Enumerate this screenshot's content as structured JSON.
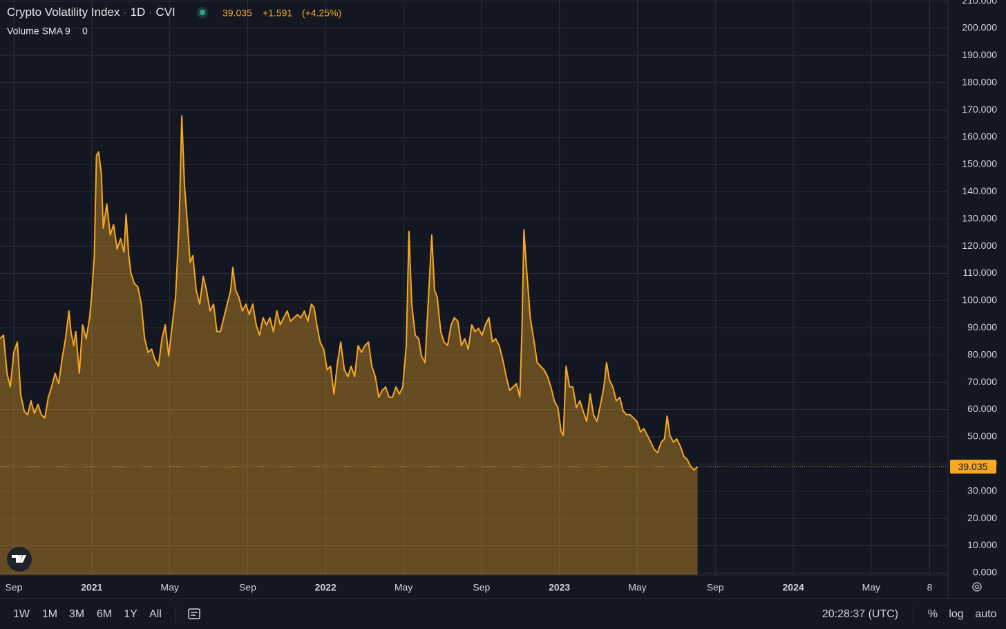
{
  "chart_data": {
    "type": "area",
    "title": "Crypto Volatility Index",
    "interval": "1D",
    "symbol": "CVI",
    "change": "+1.591",
    "change_percent": "(+4.25%)",
    "indicator": {
      "name": "Volume SMA 9",
      "value": 0
    },
    "color": "#f7a823",
    "fill": "rgba(247,168,35,0.36)",
    "grid": true,
    "xlim": [
      -0.71,
      47.94
    ],
    "ylim": [
      -0.8,
      210.4
    ],
    "xticks": [
      {
        "value": 0,
        "label": "Sep"
      },
      {
        "value": 4,
        "label": "2021"
      },
      {
        "value": 8,
        "label": "May"
      },
      {
        "value": 12,
        "label": "Sep"
      },
      {
        "value": 16,
        "label": "2022"
      },
      {
        "value": 20,
        "label": "May"
      },
      {
        "value": 24,
        "label": "Sep"
      },
      {
        "value": 28,
        "label": "2023"
      },
      {
        "value": 32,
        "label": "May"
      },
      {
        "value": 36,
        "label": "Sep"
      },
      {
        "value": 40,
        "label": "2024"
      },
      {
        "value": 44,
        "label": "May"
      },
      {
        "value": 47,
        "label": "8"
      }
    ],
    "yticks": [
      {
        "value": 0,
        "label": "0.000"
      },
      {
        "value": 10,
        "label": "10.000"
      },
      {
        "value": 20,
        "label": "20.000"
      },
      {
        "value": 30,
        "label": "30.000"
      },
      {
        "value": 40,
        "label": "40.000"
      },
      {
        "value": 50,
        "label": "50.000"
      },
      {
        "value": 60,
        "label": "60.000"
      },
      {
        "value": 70,
        "label": "70.000"
      },
      {
        "value": 80,
        "label": "80.000"
      },
      {
        "value": 90,
        "label": "90.000"
      },
      {
        "value": 100,
        "label": "100.000"
      },
      {
        "value": 110,
        "label": "110.000"
      },
      {
        "value": 120,
        "label": "120.000"
      },
      {
        "value": 130,
        "label": "130.000"
      },
      {
        "value": 140,
        "label": "140.000"
      },
      {
        "value": 150,
        "label": "150.000"
      },
      {
        "value": 160,
        "label": "160.000"
      },
      {
        "value": 170,
        "label": "170.000"
      },
      {
        "value": 180,
        "label": "180.000"
      },
      {
        "value": 190,
        "label": "190.000"
      },
      {
        "value": 200,
        "label": "200.000"
      },
      {
        "value": 210,
        "label": "210.000"
      }
    ],
    "x": [
      -0.71,
      -0.53,
      -0.35,
      -0.18,
      0,
      0.18,
      0.35,
      0.53,
      0.71,
      0.88,
      1.06,
      1.24,
      1.41,
      1.59,
      1.77,
      1.94,
      2.12,
      2.3,
      2.47,
      2.65,
      2.83,
      2.93,
      3.07,
      3.18,
      3.36,
      3.53,
      3.71,
      3.89,
      3.99,
      4.13,
      4.24,
      4.35,
      4.49,
      4.59,
      4.77,
      4.95,
      5.12,
      5.3,
      5.48,
      5.65,
      5.76,
      5.9,
      6.01,
      6.18,
      6.36,
      6.54,
      6.71,
      6.89,
      7.07,
      7.24,
      7.42,
      7.6,
      7.77,
      7.95,
      8.13,
      8.3,
      8.48,
      8.62,
      8.76,
      8.9,
      9.05,
      9.19,
      9.36,
      9.54,
      9.72,
      9.89,
      10.07,
      10.25,
      10.42,
      10.6,
      10.78,
      10.95,
      11.13,
      11.24,
      11.38,
      11.55,
      11.73,
      11.91,
      12.08,
      12.26,
      12.44,
      12.61,
      12.79,
      12.97,
      13.14,
      13.32,
      13.5,
      13.67,
      13.85,
      14.03,
      14.2,
      14.38,
      14.56,
      14.73,
      14.91,
      15.09,
      15.27,
      15.41,
      15.55,
      15.72,
      15.9,
      16.08,
      16.25,
      16.43,
      16.61,
      16.78,
      16.96,
      17.14,
      17.31,
      17.49,
      17.67,
      17.84,
      18.02,
      18.2,
      18.37,
      18.55,
      18.73,
      18.9,
      19.08,
      19.26,
      19.43,
      19.61,
      19.79,
      19.96,
      20.14,
      20.28,
      20.42,
      20.6,
      20.78,
      20.92,
      21.1,
      21.27,
      21.45,
      21.59,
      21.73,
      21.91,
      22.08,
      22.26,
      22.44,
      22.61,
      22.79,
      22.97,
      23.14,
      23.32,
      23.5,
      23.67,
      23.85,
      24.03,
      24.2,
      24.38,
      24.56,
      24.73,
      24.91,
      25.09,
      25.27,
      25.44,
      25.62,
      25.8,
      25.97,
      26.08,
      26.18,
      26.29,
      26.4,
      26.5,
      26.68,
      26.86,
      27.03,
      27.21,
      27.39,
      27.56,
      27.74,
      27.92,
      28.09,
      28.2,
      28.34,
      28.52,
      28.69,
      28.87,
      29.05,
      29.22,
      29.4,
      29.58,
      29.75,
      29.93,
      30.11,
      30.28,
      30.42,
      30.57,
      30.74,
      30.92,
      31.1,
      31.27,
      31.45,
      31.63,
      31.8,
      31.98,
      32.16,
      32.33,
      32.51,
      32.69,
      32.86,
      33.04,
      33.22,
      33.39,
      33.53,
      33.67,
      33.85,
      34.02,
      34.2,
      34.38,
      34.56,
      34.73,
      34.91,
      35.09
    ],
    "values": [
      86.0,
      87.3,
      73.3,
      68.3,
      81.0,
      84.8,
      65.7,
      59.4,
      58.1,
      63.2,
      58.6,
      61.9,
      58.1,
      56.9,
      64.5,
      68.3,
      73.3,
      69.5,
      78.4,
      86.0,
      96.2,
      88.6,
      83.5,
      88.6,
      73.3,
      91.1,
      86.0,
      93.7,
      101.3,
      116.5,
      153.3,
      154.6,
      146.9,
      126.6,
      135.5,
      124.1,
      127.9,
      119.0,
      122.8,
      117.8,
      131.7,
      116.5,
      110.1,
      106.3,
      105.1,
      98.7,
      86.0,
      81.0,
      82.2,
      78.4,
      75.9,
      86.0,
      91.1,
      79.7,
      91.1,
      101.3,
      127.9,
      167.8,
      141.9,
      129.2,
      114.0,
      116.5,
      103.8,
      98.7,
      108.9,
      103.8,
      96.2,
      98.7,
      88.6,
      88.6,
      93.7,
      98.7,
      103.8,
      112.2,
      103.8,
      101.3,
      96.2,
      98.7,
      94.9,
      98.7,
      91.1,
      87.3,
      93.7,
      91.1,
      93.7,
      88.6,
      96.2,
      91.1,
      93.7,
      96.2,
      92.4,
      93.7,
      94.9,
      93.7,
      96.2,
      92.4,
      98.7,
      97.5,
      91.1,
      84.8,
      82.2,
      74.6,
      75.9,
      65.7,
      77.2,
      84.8,
      74.6,
      72.1,
      75.9,
      72.1,
      83.5,
      81.0,
      83.5,
      84.8,
      75.9,
      72.1,
      64.5,
      67.0,
      68.3,
      64.5,
      64.5,
      68.3,
      65.7,
      68.3,
      83.5,
      125.4,
      98.7,
      87.3,
      86.0,
      79.7,
      77.2,
      100.0,
      124.1,
      103.8,
      101.3,
      88.6,
      84.8,
      83.5,
      91.1,
      93.7,
      92.4,
      83.5,
      86.0,
      82.2,
      91.1,
      88.6,
      89.8,
      87.3,
      91.1,
      93.7,
      84.8,
      86.0,
      83.5,
      78.4,
      72.1,
      67.0,
      68.3,
      69.5,
      64.5,
      89.8,
      126.1,
      114.0,
      103.8,
      93.7,
      86.0,
      77.2,
      75.9,
      74.6,
      72.1,
      68.3,
      63.2,
      60.7,
      51.8,
      50.5,
      75.9,
      68.3,
      68.3,
      60.7,
      63.2,
      59.4,
      55.6,
      65.7,
      58.1,
      55.6,
      61.9,
      68.3,
      77.2,
      70.8,
      68.3,
      63.2,
      64.5,
      59.4,
      58.1,
      58.1,
      56.9,
      55.6,
      51.8,
      53.0,
      50.5,
      48.0,
      45.4,
      44.2,
      48.0,
      49.2,
      57.6,
      50.5,
      48.0,
      49.2,
      46.7,
      42.9,
      41.6,
      39.1,
      37.8,
      39.035
    ]
  },
  "toolbar": {
    "ranges": [
      "1W",
      "1M",
      "3M",
      "6M",
      "1Y",
      "All"
    ],
    "time": "20:28:37 (UTC)",
    "options": [
      "%",
      "log",
      "auto"
    ]
  }
}
